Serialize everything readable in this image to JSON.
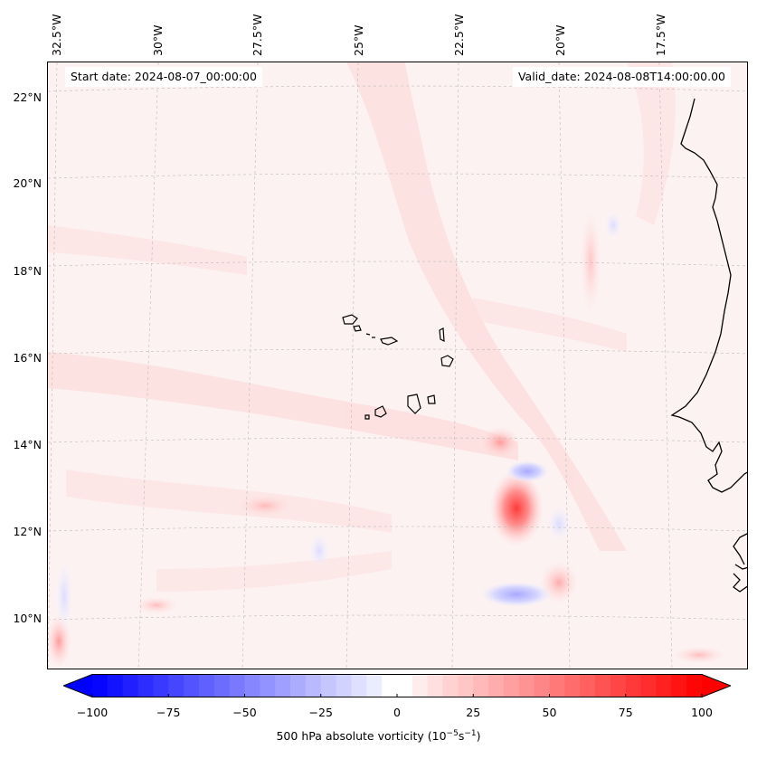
{
  "map": {
    "start_date": "Start date: 2024-08-07_00:00:00",
    "valid_date": "Valid_date: 2024-08-08T14:00:00.00",
    "longitude_labels": [
      "32.5°W",
      "30°W",
      "27.5°W",
      "25°W",
      "22.5°W",
      "20°W",
      "17.5°W"
    ],
    "latitude_labels": [
      "22°N",
      "20°N",
      "18°N",
      "16°N",
      "14°N",
      "12°N",
      "10°N"
    ],
    "field": "500 hPa absolute vorticity",
    "positive_color": "#ff0000",
    "negative_color": "#0000ff",
    "neutral_color": "#ffffff",
    "coastline_color": "#000000",
    "gridlines": true
  },
  "colorbar": {
    "label_main": "500 hPa absolute vorticity (10",
    "label_exp1": "−5",
    "label_mid": "s",
    "label_exp2": "−1",
    "label_end": ")",
    "ticks": [
      "−100",
      "−75",
      "−50",
      "−25",
      "0",
      "25",
      "50",
      "75",
      "100"
    ],
    "min": -100,
    "max": 100,
    "extend": "both"
  }
}
